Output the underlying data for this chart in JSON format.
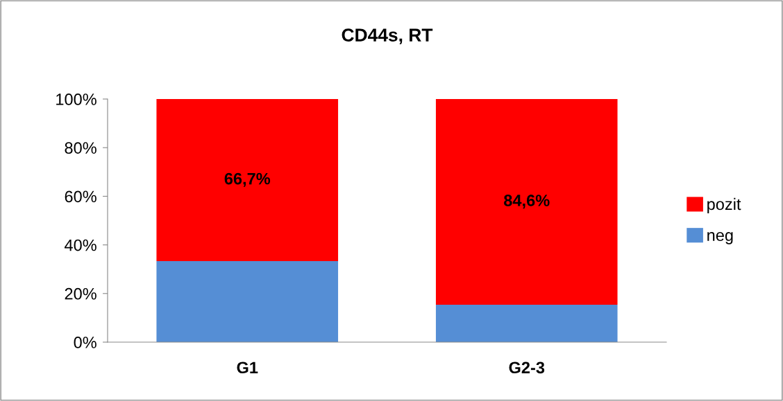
{
  "chart_data": {
    "type": "bar",
    "title": "CD44s, RT",
    "categories": [
      "G1",
      "G2-3"
    ],
    "stacked": true,
    "series": [
      {
        "name": "neg",
        "color": "#558ed5",
        "values": [
          33.3,
          15.4
        ]
      },
      {
        "name": "pozit",
        "color": "#ff0000",
        "values": [
          66.7,
          84.6
        ],
        "value_labels": [
          "66,7%",
          "84,6%"
        ]
      }
    ],
    "ylim": [
      0,
      100
    ],
    "yticks": [
      {
        "value": 0,
        "label": "0%"
      },
      {
        "value": 20,
        "label": "20%"
      },
      {
        "value": 40,
        "label": "40%"
      },
      {
        "value": 60,
        "label": "60%"
      },
      {
        "value": 80,
        "label": "80%"
      },
      {
        "value": 100,
        "label": "100%"
      }
    ],
    "grid": false,
    "legend": "right"
  }
}
